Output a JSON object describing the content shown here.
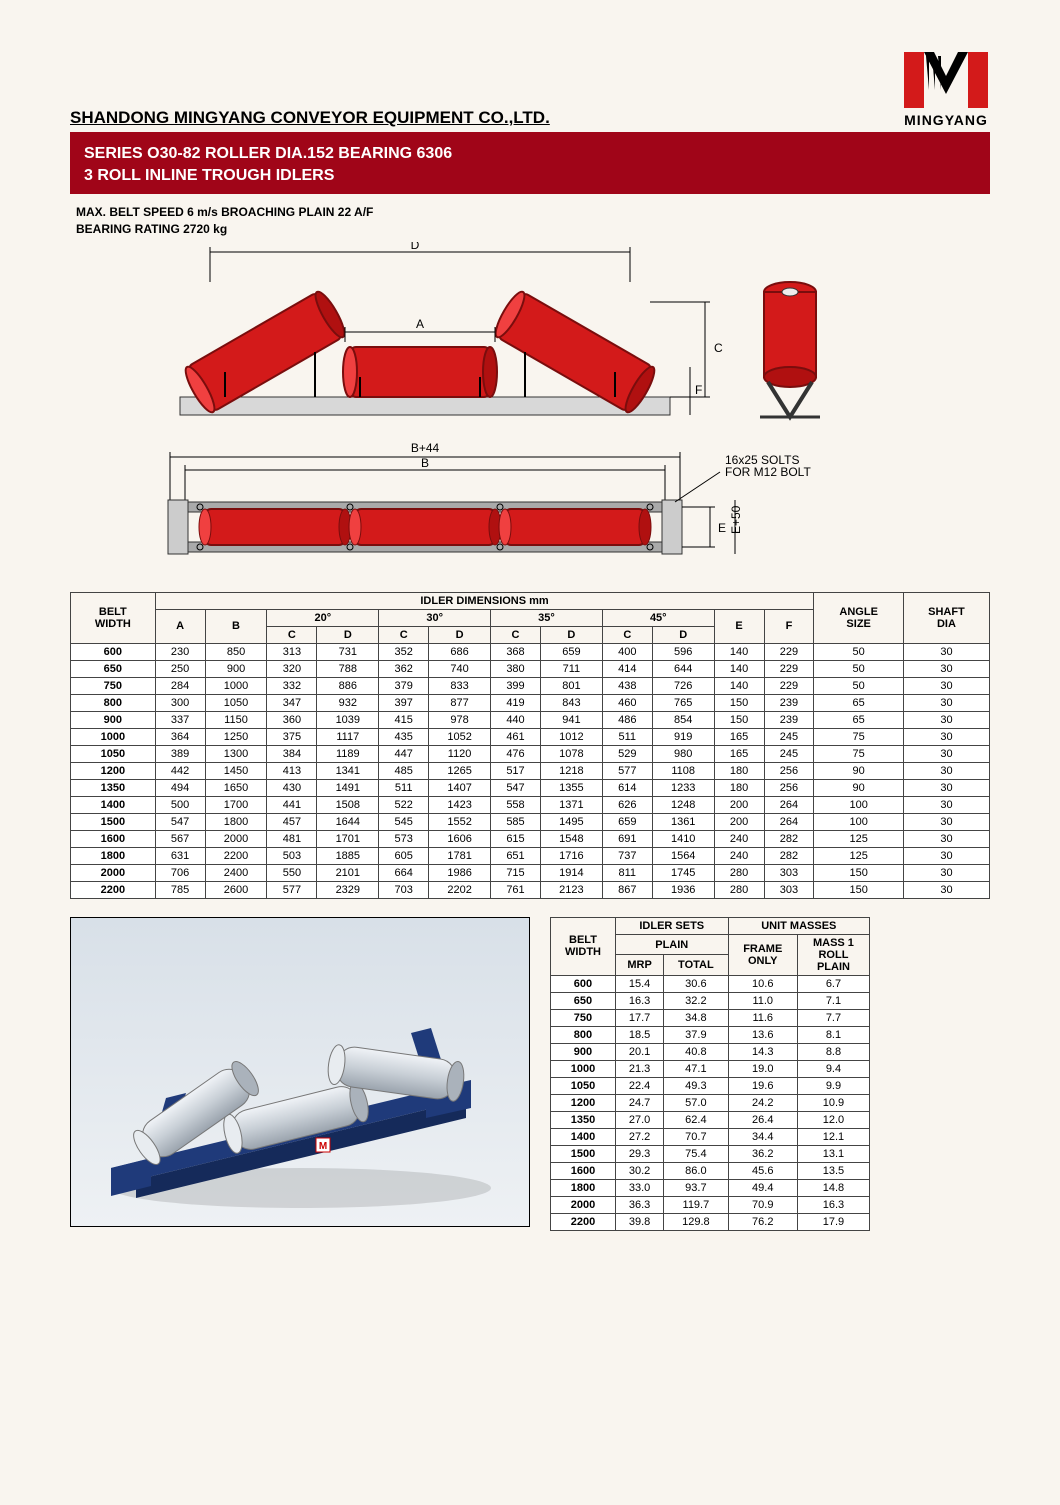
{
  "company_name": "SHANDONG MINGYANG CONVEYOR EQUIPMENT CO.,LTD.",
  "logo_text": "MINGYANG",
  "logo_colors": {
    "red": "#d31a1a",
    "black": "#000000"
  },
  "title_line1": "SERIES O30-82 ROLLER DIA.152 BEARING 6306",
  "title_line2": "3 ROLL INLINE TROUGH IDLERS",
  "spec_line1": "MAX. BELT SPEED 6 m/s BROACHING PLAIN 22 A/F",
  "spec_line2": "BEARING RATING 2720 kg",
  "diagram": {
    "labels": {
      "D": "D",
      "A": "A",
      "C": "C",
      "F": "F",
      "B44": "B+44",
      "B": "B",
      "E": "E",
      "E50": "E+50"
    },
    "slot_note": "16x25 SOLTS\nFOR M12 BOLT",
    "roller_color": "#d31a1a",
    "roller_stroke": "#7a0d0d",
    "frame_color": "#808080",
    "base_color": "#c0c0c0"
  },
  "dim_table": {
    "title": "IDLER DIMENSIONS mm",
    "belt_width_header": "BELT\nWIDTH",
    "angle_header": "ANGLE\nSIZE",
    "shaft_header": "SHAFT\nDIA",
    "angles": [
      "20°",
      "30°",
      "35°",
      "45°"
    ],
    "cols": [
      "A",
      "B",
      "C",
      "D",
      "C",
      "D",
      "C",
      "D",
      "C",
      "D",
      "E",
      "F"
    ],
    "rows": [
      {
        "bw": "600",
        "v": [
          "230",
          "850",
          "313",
          "731",
          "352",
          "686",
          "368",
          "659",
          "400",
          "596",
          "140",
          "229",
          "50",
          "30"
        ]
      },
      {
        "bw": "650",
        "v": [
          "250",
          "900",
          "320",
          "788",
          "362",
          "740",
          "380",
          "711",
          "414",
          "644",
          "140",
          "229",
          "50",
          "30"
        ]
      },
      {
        "bw": "750",
        "v": [
          "284",
          "1000",
          "332",
          "886",
          "379",
          "833",
          "399",
          "801",
          "438",
          "726",
          "140",
          "229",
          "50",
          "30"
        ]
      },
      {
        "bw": "800",
        "v": [
          "300",
          "1050",
          "347",
          "932",
          "397",
          "877",
          "419",
          "843",
          "460",
          "765",
          "150",
          "239",
          "65",
          "30"
        ]
      },
      {
        "bw": "900",
        "v": [
          "337",
          "1150",
          "360",
          "1039",
          "415",
          "978",
          "440",
          "941",
          "486",
          "854",
          "150",
          "239",
          "65",
          "30"
        ]
      },
      {
        "bw": "1000",
        "v": [
          "364",
          "1250",
          "375",
          "1117",
          "435",
          "1052",
          "461",
          "1012",
          "511",
          "919",
          "165",
          "245",
          "75",
          "30"
        ]
      },
      {
        "bw": "1050",
        "v": [
          "389",
          "1300",
          "384",
          "1189",
          "447",
          "1120",
          "476",
          "1078",
          "529",
          "980",
          "165",
          "245",
          "75",
          "30"
        ]
      },
      {
        "bw": "1200",
        "v": [
          "442",
          "1450",
          "413",
          "1341",
          "485",
          "1265",
          "517",
          "1218",
          "577",
          "1108",
          "180",
          "256",
          "90",
          "30"
        ]
      },
      {
        "bw": "1350",
        "v": [
          "494",
          "1650",
          "430",
          "1491",
          "511",
          "1407",
          "547",
          "1355",
          "614",
          "1233",
          "180",
          "256",
          "90",
          "30"
        ]
      },
      {
        "bw": "1400",
        "v": [
          "500",
          "1700",
          "441",
          "1508",
          "522",
          "1423",
          "558",
          "1371",
          "626",
          "1248",
          "200",
          "264",
          "100",
          "30"
        ]
      },
      {
        "bw": "1500",
        "v": [
          "547",
          "1800",
          "457",
          "1644",
          "545",
          "1552",
          "585",
          "1495",
          "659",
          "1361",
          "200",
          "264",
          "100",
          "30"
        ]
      },
      {
        "bw": "1600",
        "v": [
          "567",
          "2000",
          "481",
          "1701",
          "573",
          "1606",
          "615",
          "1548",
          "691",
          "1410",
          "240",
          "282",
          "125",
          "30"
        ]
      },
      {
        "bw": "1800",
        "v": [
          "631",
          "2200",
          "503",
          "1885",
          "605",
          "1781",
          "651",
          "1716",
          "737",
          "1564",
          "240",
          "282",
          "125",
          "30"
        ]
      },
      {
        "bw": "2000",
        "v": [
          "706",
          "2400",
          "550",
          "2101",
          "664",
          "1986",
          "715",
          "1914",
          "811",
          "1745",
          "280",
          "303",
          "150",
          "30"
        ]
      },
      {
        "bw": "2200",
        "v": [
          "785",
          "2600",
          "577",
          "2329",
          "703",
          "2202",
          "761",
          "2123",
          "867",
          "1936",
          "280",
          "303",
          "150",
          "30"
        ]
      }
    ]
  },
  "mass_table": {
    "header_idler_sets": "IDLER SETS",
    "header_unit_masses": "UNIT MASSES",
    "belt_width_header": "BELT\nWIDTH",
    "plain_header": "PLAIN",
    "frame_header": "FRAME\nONLY",
    "mass1_header": "MASS 1\nROLL\nPLAIN",
    "mrp": "MRP",
    "total": "TOTAL",
    "rows": [
      {
        "bw": "600",
        "v": [
          "15.4",
          "30.6",
          "10.6",
          "6.7"
        ]
      },
      {
        "bw": "650",
        "v": [
          "16.3",
          "32.2",
          "11.0",
          "7.1"
        ]
      },
      {
        "bw": "750",
        "v": [
          "17.7",
          "34.8",
          "11.6",
          "7.7"
        ]
      },
      {
        "bw": "800",
        "v": [
          "18.5",
          "37.9",
          "13.6",
          "8.1"
        ]
      },
      {
        "bw": "900",
        "v": [
          "20.1",
          "40.8",
          "14.3",
          "8.8"
        ]
      },
      {
        "bw": "1000",
        "v": [
          "21.3",
          "47.1",
          "19.0",
          "9.4"
        ]
      },
      {
        "bw": "1050",
        "v": [
          "22.4",
          "49.3",
          "19.6",
          "9.9"
        ]
      },
      {
        "bw": "1200",
        "v": [
          "24.7",
          "57.0",
          "24.2",
          "10.9"
        ]
      },
      {
        "bw": "1350",
        "v": [
          "27.0",
          "62.4",
          "26.4",
          "12.0"
        ]
      },
      {
        "bw": "1400",
        "v": [
          "27.2",
          "70.7",
          "34.4",
          "12.1"
        ]
      },
      {
        "bw": "1500",
        "v": [
          "29.3",
          "75.4",
          "36.2",
          "13.1"
        ]
      },
      {
        "bw": "1600",
        "v": [
          "30.2",
          "86.0",
          "45.6",
          "13.5"
        ]
      },
      {
        "bw": "1800",
        "v": [
          "33.0",
          "93.7",
          "49.4",
          "14.8"
        ]
      },
      {
        "bw": "2000",
        "v": [
          "36.3",
          "119.7",
          "70.9",
          "16.3"
        ]
      },
      {
        "bw": "2200",
        "v": [
          "39.8",
          "129.8",
          "76.2",
          "17.9"
        ]
      }
    ]
  },
  "render": {
    "frame_color": "#1f3a7a",
    "roller_color": "#c8cfd6"
  }
}
